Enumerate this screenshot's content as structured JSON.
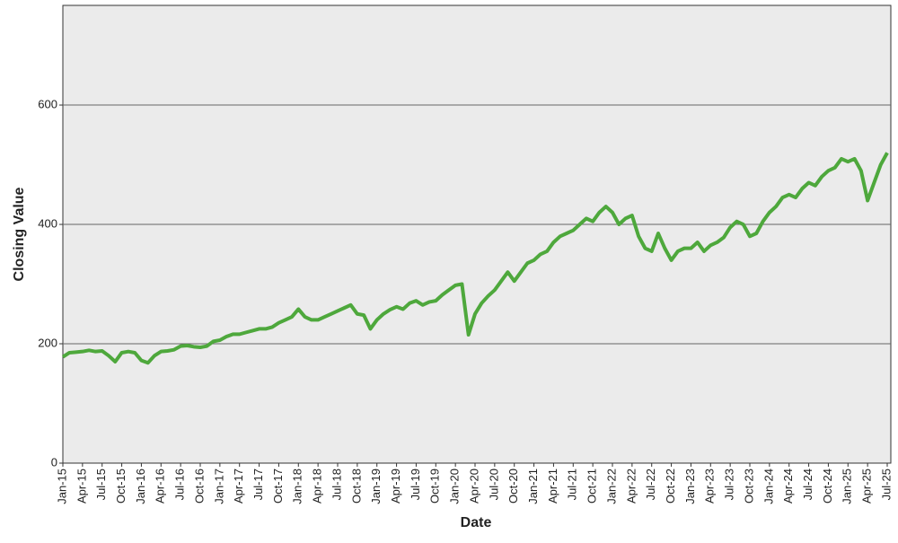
{
  "chart_data": {
    "type": "line",
    "xlabel": "Date",
    "ylabel": "Closing Value",
    "categories": [
      "Jan-15",
      null,
      null,
      "Apr-15",
      null,
      null,
      "Jul-15",
      null,
      null,
      "Oct-15",
      null,
      null,
      "Jan-16",
      null,
      null,
      "Apr-16",
      null,
      null,
      "Jul-16",
      null,
      null,
      "Oct-16",
      null,
      null,
      "Jan-17",
      null,
      null,
      "Apr-17",
      null,
      null,
      "Jul-17",
      null,
      null,
      "Oct-17",
      null,
      null,
      "Jan-18",
      null,
      null,
      "Apr-18",
      null,
      null,
      "Jul-18",
      null,
      null,
      "Oct-18",
      null,
      null,
      "Jan-19",
      null,
      null,
      "Apr-19",
      null,
      null,
      "Jul-19",
      null,
      null,
      "Oct-19",
      null,
      null,
      "Jan-20",
      null,
      null,
      "Apr-20",
      null,
      null,
      "Jul-20",
      null,
      null,
      "Oct-20",
      null,
      null,
      "Jan-21",
      null,
      null,
      "Apr-21",
      null,
      null,
      "Jul-21",
      null,
      null,
      "Oct-21",
      null,
      null,
      "Jan-22",
      null,
      null,
      "Apr-22",
      null,
      null,
      "Jul-22",
      null,
      null,
      "Oct-22",
      null,
      null,
      "Jan-23",
      null,
      null,
      "Apr-23",
      null,
      null,
      "Jul-23",
      null,
      null,
      "Oct-23",
      null,
      null,
      "Jan-24",
      null,
      null,
      "Apr-24",
      null,
      null,
      "Jul-24",
      null,
      null,
      "Oct-24",
      null,
      null,
      "Jan-25",
      null,
      null,
      "Apr-25",
      null,
      null,
      "Jul-25"
    ],
    "series": [
      {
        "name": "Closing Value",
        "color": "#4ea83c",
        "values": [
          178,
          185,
          186,
          187,
          189,
          187,
          188,
          180,
          170,
          185,
          187,
          185,
          172,
          168,
          180,
          187,
          188,
          190,
          196,
          197,
          195,
          194,
          196,
          204,
          206,
          212,
          216,
          216,
          219,
          222,
          225,
          225,
          228,
          235,
          240,
          245,
          258,
          245,
          240,
          240,
          245,
          250,
          255,
          260,
          265,
          250,
          248,
          225,
          240,
          250,
          257,
          262,
          258,
          268,
          272,
          265,
          270,
          272,
          282,
          290,
          298,
          300,
          215,
          250,
          268,
          280,
          290,
          305,
          320,
          305,
          320,
          335,
          340,
          350,
          355,
          370,
          380,
          385,
          390,
          400,
          410,
          405,
          420,
          430,
          420,
          400,
          410,
          415,
          380,
          360,
          355,
          385,
          360,
          340,
          355,
          360,
          360,
          370,
          355,
          365,
          370,
          378,
          395,
          405,
          400,
          380,
          385,
          405,
          420,
          430,
          445,
          450,
          445,
          460,
          470,
          465,
          480,
          490,
          495,
          510,
          505,
          510,
          490,
          440,
          470,
          500,
          520
        ]
      }
    ],
    "ylim": [
      0,
      767
    ],
    "yticks": [
      0,
      200,
      400,
      600
    ],
    "grid": true
  }
}
